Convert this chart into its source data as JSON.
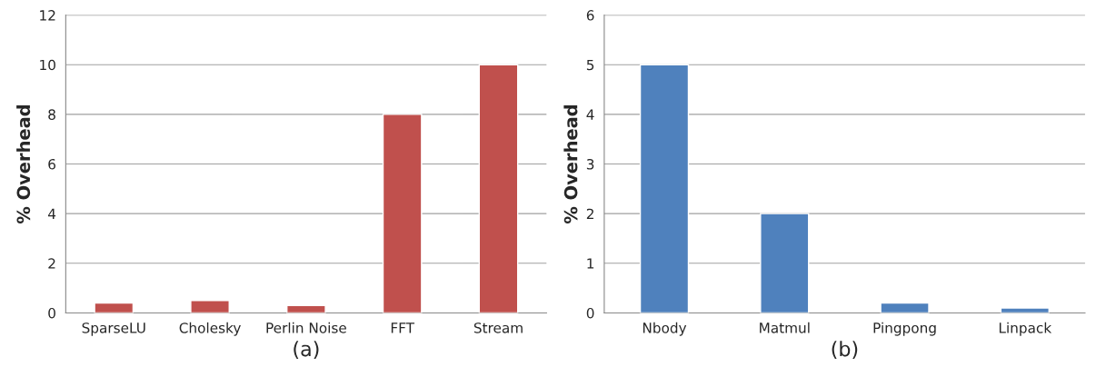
{
  "chart_data": [
    {
      "type": "bar",
      "xlabel": "(a)",
      "ylabel": "% Overhead",
      "categories": [
        "SparseLU",
        "Cholesky",
        "Perlin Noise",
        "FFT",
        "Stream"
      ],
      "values": [
        0.4,
        0.5,
        0.3,
        8,
        10
      ],
      "color": "#c0504d",
      "ylim": [
        0,
        12
      ],
      "yticks": [
        0,
        2,
        4,
        6,
        8,
        10,
        12
      ],
      "grid": "y"
    },
    {
      "type": "bar",
      "xlabel": "(b)",
      "ylabel": "% Overhead",
      "categories": [
        "Nbody",
        "Matmul",
        "Pingpong",
        "Linpack"
      ],
      "values": [
        5,
        2,
        0.2,
        0.1
      ],
      "color": "#4f81bd",
      "ylim": [
        0,
        6
      ],
      "yticks": [
        0,
        1,
        2,
        3,
        4,
        5,
        6
      ],
      "grid": "y"
    }
  ]
}
